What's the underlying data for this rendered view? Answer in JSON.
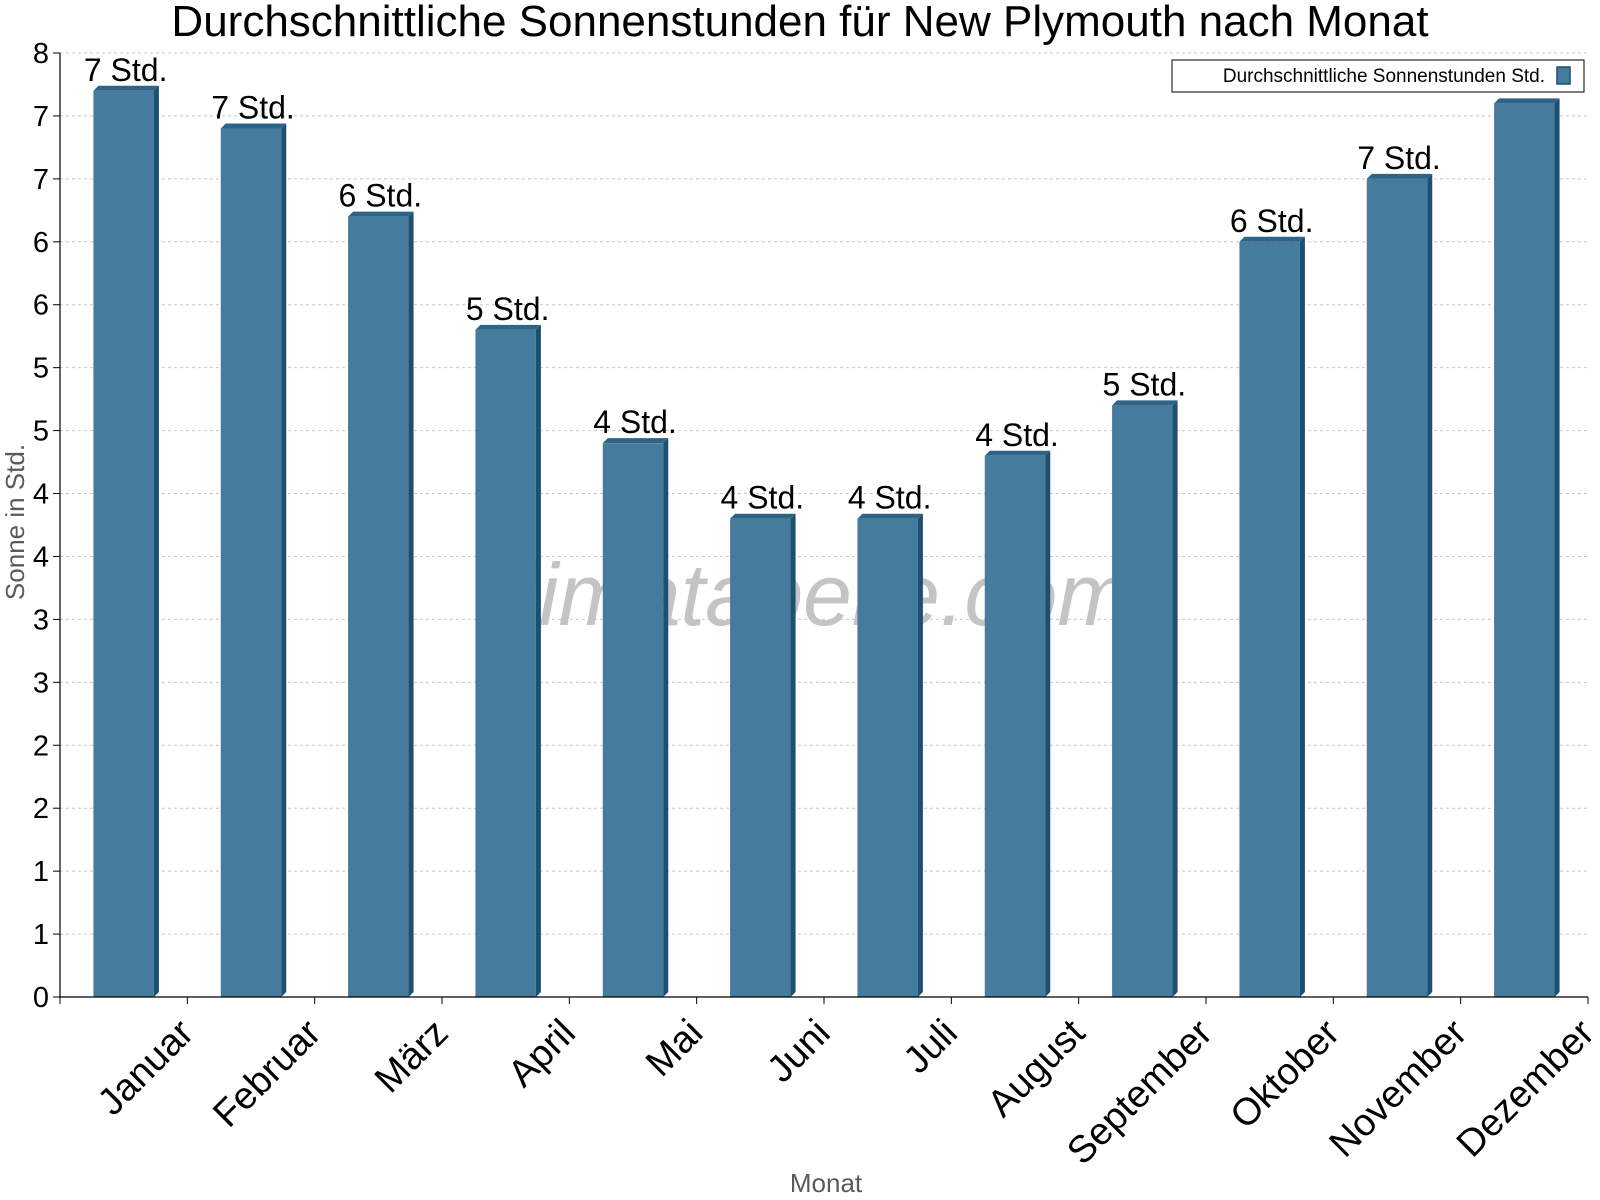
{
  "chart_data": {
    "type": "bar",
    "title": "Durchschnittliche Sonnenstunden für New Plymouth nach Monat",
    "xlabel": "Monat",
    "ylabel": "Sonne in Std.",
    "ylim": [
      0,
      7.5
    ],
    "yticks": [
      {
        "value": 0,
        "label": "0"
      },
      {
        "value": 0.5,
        "label": "1"
      },
      {
        "value": 1,
        "label": "1"
      },
      {
        "value": 1.5,
        "label": "2"
      },
      {
        "value": 2,
        "label": "2"
      },
      {
        "value": 2.5,
        "label": "3"
      },
      {
        "value": 3,
        "label": "3"
      },
      {
        "value": 3.5,
        "label": "4"
      },
      {
        "value": 4,
        "label": "4"
      },
      {
        "value": 4.5,
        "label": "5"
      },
      {
        "value": 5,
        "label": "5"
      },
      {
        "value": 5.5,
        "label": "6"
      },
      {
        "value": 6,
        "label": "6"
      },
      {
        "value": 6.5,
        "label": "7"
      },
      {
        "value": 7,
        "label": "7"
      },
      {
        "value": 7.5,
        "label": "8"
      }
    ],
    "grid": true,
    "legend_position": "top-right",
    "categories": [
      "Januar",
      "Februar",
      "März",
      "April",
      "Mai",
      "Juni",
      "Juli",
      "August",
      "September",
      "Oktober",
      "November",
      "Dezember"
    ],
    "series": [
      {
        "name": "Durchschnittliche Sonnenstunden Std.",
        "values": [
          7.2,
          6.9,
          6.2,
          5.3,
          4.4,
          3.8,
          3.8,
          4.3,
          4.7,
          6.0,
          6.5,
          7.1
        ],
        "labels": [
          "7 Std.",
          "7 Std.",
          "6 Std.",
          "5 Std.",
          "4 Std.",
          "4 Std.",
          "4 Std.",
          "4 Std.",
          "5 Std.",
          "6 Std.",
          "7 Std.",
          ""
        ]
      }
    ],
    "colors": {
      "bar": "#457b9d",
      "bar_top": "#2f6487",
      "bar_side": "#1d4f70"
    }
  },
  "watermark": "klimatabelle.com"
}
